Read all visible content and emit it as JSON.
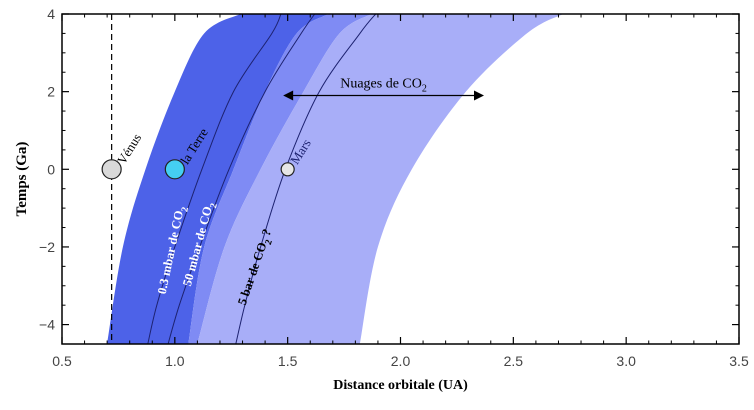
{
  "chart_data": {
    "type": "area",
    "title": "",
    "xlabel": "Distance orbitale (UA)",
    "ylabel": "Temps (Ga)",
    "xlim": [
      0.5,
      3.5
    ],
    "ylim": [
      -4.5,
      4
    ],
    "x_ticks": [
      "0.5",
      "1.0",
      "1.5",
      "2.0",
      "2.5",
      "3.0",
      "3.5"
    ],
    "y_ticks": [
      "4",
      "2",
      "0",
      "−2",
      "−4"
    ],
    "y_tick_values": [
      4,
      2,
      0,
      -2,
      -4
    ],
    "grid": false,
    "bands": [
      {
        "color": "#4d62e8",
        "inner_edge": {
          "x": [
            0.7,
            0.77,
            0.87,
            1.0,
            1.13,
            1.29
          ],
          "y": [
            -4.5,
            -2,
            0,
            2,
            3.5,
            4
          ]
        },
        "outer_edge": {
          "x": [
            1.06,
            1.13,
            1.26,
            1.4,
            1.54,
            1.68
          ],
          "y": [
            -4.5,
            -2,
            0,
            2,
            3.5,
            4
          ]
        }
      },
      {
        "color": "#7f8bf4",
        "inner_edge": {
          "x": [
            1.06,
            1.13,
            1.26,
            1.4,
            1.54,
            1.68
          ],
          "y": [
            -4.5,
            -2,
            0,
            2,
            3.5,
            4
          ]
        },
        "outer_edge": {
          "x": [
            1.1,
            1.22,
            1.38,
            1.57,
            1.73,
            1.87
          ],
          "y": [
            -4.5,
            -2,
            0,
            2,
            3.5,
            4
          ]
        }
      },
      {
        "color": "#a8aef8",
        "inner_edge": {
          "x": [
            1.1,
            1.22,
            1.38,
            1.57,
            1.73,
            1.87
          ],
          "y": [
            -4.5,
            -2,
            0,
            2,
            3.5,
            4
          ]
        },
        "outer_edge": {
          "x": [
            1.82,
            1.9,
            2.05,
            2.29,
            2.56,
            2.72
          ],
          "y": [
            -4.5,
            -2,
            0,
            2,
            3.5,
            4
          ]
        }
      }
    ],
    "curves": [
      {
        "label": "0.3 mbar de CO2",
        "x": [
          0.88,
          0.92,
          1.0,
          1.12,
          1.26,
          1.43,
          1.47
        ],
        "y": [
          -4.5,
          -3.5,
          -2,
          0,
          2,
          3.5,
          4
        ]
      },
      {
        "label": "50 mbar de CO2",
        "x": [
          0.97,
          1.02,
          1.11,
          1.24,
          1.4,
          1.56,
          1.62
        ],
        "y": [
          -4.5,
          -3.5,
          -2,
          0,
          2,
          3.5,
          4
        ]
      },
      {
        "label": "5 bar de CO2 ?",
        "x": [
          1.27,
          1.31,
          1.38,
          1.49,
          1.64,
          1.82,
          1.89
        ],
        "y": [
          -4.5,
          -3.5,
          -2,
          0,
          2,
          3.5,
          4
        ]
      }
    ],
    "venus_line_x": 0.72,
    "planets": [
      {
        "name": "Vénus",
        "x": 0.72,
        "y": 0,
        "color": "#d9d9d9",
        "size": "large"
      },
      {
        "name": "la Terre",
        "x": 1.0,
        "y": 0,
        "color": "#45cff2",
        "size": "large"
      },
      {
        "name": "Mars",
        "x": 1.5,
        "y": 0,
        "color": "#e6e6e6",
        "size": "small"
      }
    ],
    "annotations": [
      {
        "id": "clouds",
        "text_main": "Nuages de CO",
        "text_sub": "2",
        "x_from": 1.48,
        "x_to": 2.37,
        "y": 1.9
      },
      {
        "id": "co2_03",
        "text_main": "0.3 mbar de CO",
        "text_sub": "2",
        "text_tail": "",
        "x": 1.0,
        "y": -2.1,
        "rotation": -78
      },
      {
        "id": "co2_50",
        "text_main": "50 mbar de CO",
        "text_sub": "2",
        "text_tail": "",
        "x": 1.12,
        "y": -1.95,
        "rotation": -75
      },
      {
        "id": "co2_5bar",
        "text_main": "5 bar de CO",
        "text_sub": "2",
        "text_tail": " ?",
        "x": 1.37,
        "y": -2.55,
        "rotation": -71
      }
    ]
  }
}
